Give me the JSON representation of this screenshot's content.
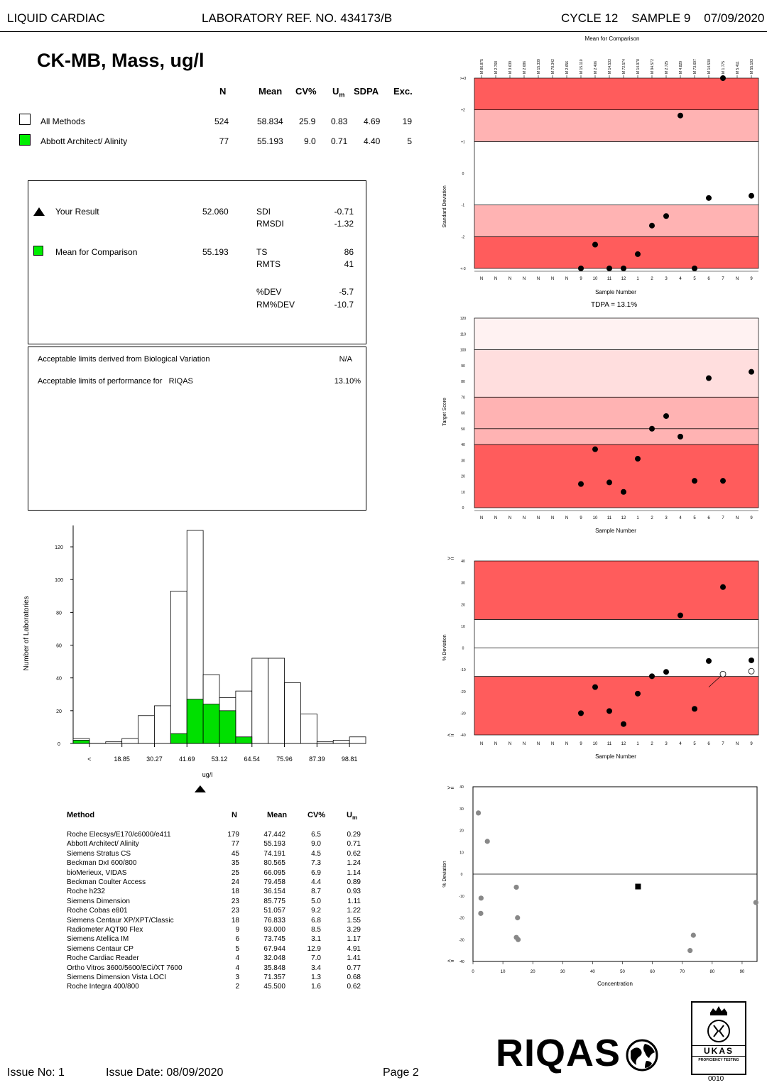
{
  "header": {
    "left": "LIQUID CARDIAC",
    "center": "LABORATORY REF. NO.  434173/B",
    "right": "CYCLE 12    SAMPLE 9    07/09/2020"
  },
  "analyte_title": "CK-MB, Mass, ug/l",
  "stats": {
    "columns": [
      "N",
      "Mean",
      "CV%",
      "Um",
      "SDPA",
      "Exc."
    ],
    "rows": [
      {
        "name": "All Methods",
        "n": "524",
        "mean": "58.834",
        "cv": "25.9",
        "um": "0.83",
        "sdpa": "4.69",
        "exc": "19"
      },
      {
        "name": "Abbott Architect/ Alinity",
        "n": "77",
        "mean": "55.193",
        "cv": "9.0",
        "um": "0.71",
        "sdpa": "4.40",
        "exc": "5"
      }
    ]
  },
  "result": {
    "your_result_label": "Your Result",
    "your_result_value": "52.060",
    "mean_label": "Mean for Comparison",
    "mean_value": "55.193",
    "sdi_label": "SDI",
    "sdi_value": "-0.71",
    "rmsdi_label": "RMSDI",
    "rmsdi_value": "-1.32",
    "ts_label": "TS",
    "ts_value": "86",
    "rmts_label": "RMTS",
    "rmts_value": "41",
    "dev_label": "%DEV",
    "dev_value": "-5.7",
    "rmdev_label": "RM%DEV",
    "rmdev_value": "-10.7"
  },
  "limits": {
    "bio_label": "Acceptable limits derived from Biological Variation",
    "bio_value": "N/A",
    "perf_label": "Acceptable limits of performance for   RIQAS",
    "perf_value": "13.10%"
  },
  "methods_table": {
    "headers": [
      "Method",
      "N",
      "Mean",
      "CV%",
      "Um"
    ],
    "rows": [
      [
        "Roche Elecsys/E170/c6000/e411",
        "179",
        "47.442",
        "6.5",
        "0.29"
      ],
      [
        "Abbott Architect/ Alinity",
        "77",
        "55.193",
        "9.0",
        "0.71"
      ],
      [
        "Siemens Stratus CS",
        "45",
        "74.191",
        "4.5",
        "0.62"
      ],
      [
        "Beckman DxI 600/800",
        "35",
        "80.565",
        "7.3",
        "1.24"
      ],
      [
        "bioMerieux, VIDAS",
        "25",
        "66.095",
        "6.9",
        "1.14"
      ],
      [
        "Beckman Coulter Access",
        "24",
        "79.458",
        "4.4",
        "0.89"
      ],
      [
        "Roche h232",
        "18",
        "36.154",
        "8.7",
        "0.93"
      ],
      [
        "Siemens Dimension",
        "23",
        "85.775",
        "5.0",
        "1.11"
      ],
      [
        "Roche Cobas e801",
        "23",
        "51.057",
        "9.2",
        "1.22"
      ],
      [
        "Siemens Centaur XP/XPT/Classic",
        "18",
        "76.833",
        "6.8",
        "1.55"
      ],
      [
        "Radiometer AQT90 Flex",
        "9",
        "93.000",
        "8.5",
        "3.29"
      ],
      [
        "Siemens Atellica IM",
        "6",
        "73.745",
        "3.1",
        "1.17"
      ],
      [
        "Siemens Centaur CP",
        "5",
        "67.944",
        "12.9",
        "4.91"
      ],
      [
        "Roche Cardiac Reader",
        "4",
        "32.048",
        "7.0",
        "1.41"
      ],
      [
        "Ortho Vitros 3600/5600/ECi/XT 7600",
        "4",
        "35.848",
        "3.4",
        "0.77"
      ],
      [
        "Siemens Dimension Vista LOCI",
        "3",
        "71.357",
        "1.3",
        "0.68"
      ],
      [
        "Roche Integra 400/800",
        "2",
        "45.500",
        "1.6",
        "0.62"
      ]
    ]
  },
  "footer": {
    "issue_no": "Issue No: 1",
    "issue_date": "Issue Date: 08/09/2020",
    "page": "Page 2",
    "logo_text": "RIQAS",
    "ukas_text": "UKAS",
    "ukas_sub": "PROFICIENCY TESTING",
    "ukas_num": "0010"
  },
  "chart_data": [
    {
      "type": "bar",
      "id": "histogram",
      "ylabel": "Number of Laboratories",
      "xlabel": "ug/l",
      "ylim": [
        0,
        130
      ],
      "yticks": [
        0,
        20,
        40,
        60,
        80,
        100,
        120
      ],
      "xticklabels": [
        "<",
        "18.85",
        "30.27",
        "41.69",
        "53.12",
        "64.54",
        "75.96",
        "87.39",
        "98.81",
        ">"
      ],
      "series": [
        {
          "name": "All Methods",
          "values": [
            3,
            0,
            1,
            3,
            17,
            23,
            93,
            130,
            42,
            28,
            32,
            52,
            52,
            37,
            18,
            1,
            2,
            4
          ]
        },
        {
          "name": "Abbott Architect/ Alinity",
          "color": "#00e000",
          "values": [
            2,
            0,
            0,
            0,
            0,
            0,
            6,
            27,
            24,
            20,
            4,
            0,
            0,
            0,
            0,
            0,
            0,
            0
          ]
        }
      ],
      "your_result_marker": 52.06
    },
    {
      "type": "scatter",
      "id": "sdi_chart",
      "title": "Mean for Comparison",
      "ylabel": "Standard Deviation",
      "xlabel": "Sample Number",
      "ylim": [
        -3,
        3
      ],
      "yticklabels": [
        "<-3",
        "-2",
        "-1",
        "0",
        "+1",
        "+2",
        ">+3"
      ],
      "top_labels": [
        "M 86.875",
        "M 2.768",
        "M 3.639",
        "M 2.686",
        "M 15.339",
        "M 78.342",
        "M 2.656",
        "M 15.110",
        "M 2.406",
        "M 14.533",
        "M 72.574",
        "M 14.978",
        "M 94.572",
        "M 2.725",
        "M 4.829",
        "M 73.697",
        "M 14.530",
        "M 1.775",
        "M 5.411",
        "M 55.193"
      ],
      "sample_labels": [
        "N",
        "N",
        "N",
        "N",
        "N",
        "N",
        "N",
        "9",
        "10",
        "11",
        "12",
        "1",
        "2",
        "3",
        "4",
        "5",
        "6",
        "7",
        "N",
        "9"
      ],
      "points": [
        [
          8,
          -3
        ],
        [
          9,
          -2.25
        ],
        [
          10,
          -3
        ],
        [
          11,
          -3
        ],
        [
          12,
          -2.55
        ],
        [
          13,
          -1.65
        ],
        [
          14,
          -1.35
        ],
        [
          15,
          1.82
        ],
        [
          16,
          -3
        ],
        [
          17,
          -0.78
        ],
        [
          18,
          3
        ],
        [
          20,
          -0.71
        ]
      ]
    },
    {
      "type": "scatter",
      "id": "target_score_chart",
      "title": "TDPA = 13.1%",
      "ylabel": "Target Score",
      "xlabel": "Sample Number",
      "ylim": [
        0,
        120
      ],
      "yticks": [
        0,
        10,
        20,
        30,
        40,
        50,
        60,
        70,
        80,
        90,
        100,
        110,
        120
      ],
      "sample_labels": [
        "N",
        "N",
        "N",
        "N",
        "N",
        "N",
        "N",
        "9",
        "10",
        "11",
        "12",
        "1",
        "2",
        "3",
        "4",
        "5",
        "6",
        "7",
        "N",
        "9"
      ],
      "points": [
        [
          8,
          15
        ],
        [
          9,
          37
        ],
        [
          10,
          16
        ],
        [
          11,
          10
        ],
        [
          12,
          31
        ],
        [
          13,
          50
        ],
        [
          14,
          58
        ],
        [
          15,
          45
        ],
        [
          16,
          17
        ],
        [
          17,
          82
        ],
        [
          18,
          17
        ],
        [
          20,
          86
        ]
      ]
    },
    {
      "type": "scatter",
      "id": "pct_dev_chart",
      "ylabel": "% Deviation",
      "xlabel": "Sample Number",
      "ylim": [
        -40,
        40
      ],
      "yticks": [
        -40,
        -30,
        -20,
        -10,
        0,
        10,
        20,
        30,
        40
      ],
      "edge_labels": [
        ">=",
        "<="
      ],
      "sample_labels": [
        "N",
        "N",
        "N",
        "N",
        "N",
        "N",
        "N",
        "9",
        "10",
        "11",
        "12",
        "1",
        "2",
        "3",
        "4",
        "5",
        "6",
        "7",
        "N",
        "9"
      ],
      "points": [
        [
          8,
          -30
        ],
        [
          9,
          -18
        ],
        [
          10,
          -29
        ],
        [
          11,
          -35
        ],
        [
          12,
          -21
        ],
        [
          13,
          -13
        ],
        [
          14,
          -11
        ],
        [
          15,
          15
        ],
        [
          16,
          -28
        ],
        [
          17,
          -6
        ],
        [
          18,
          28
        ],
        [
          20,
          -5.7
        ]
      ],
      "open_points": [
        [
          18,
          -12
        ],
        [
          20,
          -10.7
        ]
      ]
    },
    {
      "type": "scatter",
      "id": "concentration_chart",
      "ylabel": "% Deviation",
      "xlabel": "Concentration",
      "xlim": [
        0,
        95
      ],
      "ylim": [
        -40,
        40
      ],
      "xticks": [
        0,
        10,
        20,
        30,
        40,
        50,
        60,
        70,
        80,
        90
      ],
      "yticks": [
        -40,
        -30,
        -20,
        -10,
        0,
        10,
        20,
        30,
        40
      ],
      "edge_labels": [
        ">=",
        "<="
      ],
      "points": [
        [
          1.8,
          28
        ],
        [
          2.7,
          -11
        ],
        [
          2.6,
          -18
        ],
        [
          4.8,
          15
        ],
        [
          14.5,
          -6
        ],
        [
          14.9,
          -20
        ],
        [
          14.5,
          -29
        ],
        [
          15.1,
          -30
        ],
        [
          72.6,
          -35
        ],
        [
          73.7,
          -28
        ],
        [
          94.6,
          -13
        ]
      ],
      "your_result": [
        55.2,
        -5.7
      ]
    }
  ]
}
